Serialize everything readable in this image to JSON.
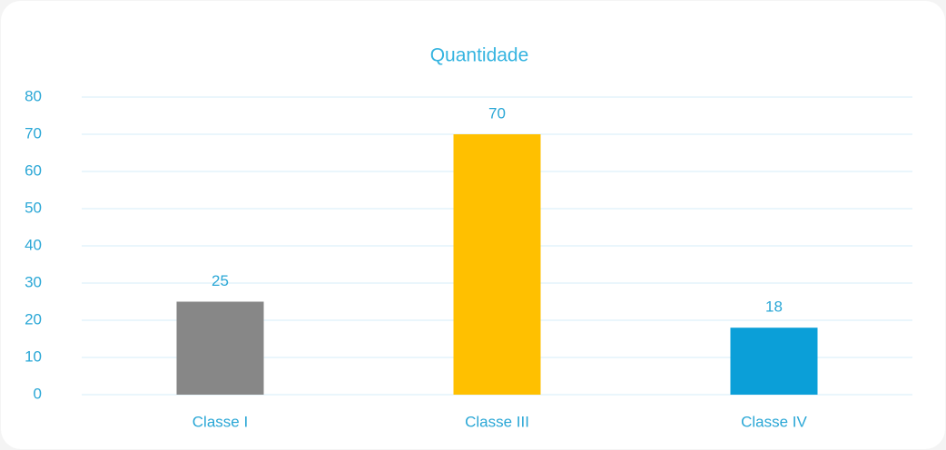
{
  "chart_data": {
    "type": "bar",
    "title": "Quantidade",
    "categories": [
      "Classe I",
      "Classe III",
      "Classe IV"
    ],
    "values": [
      25,
      70,
      18
    ],
    "colors": [
      "#878787",
      "#ffc000",
      "#0b9fd8"
    ],
    "ylim": [
      0,
      80
    ],
    "yticks": [
      0,
      10,
      20,
      30,
      40,
      50,
      60,
      70,
      80
    ],
    "grid": true
  }
}
